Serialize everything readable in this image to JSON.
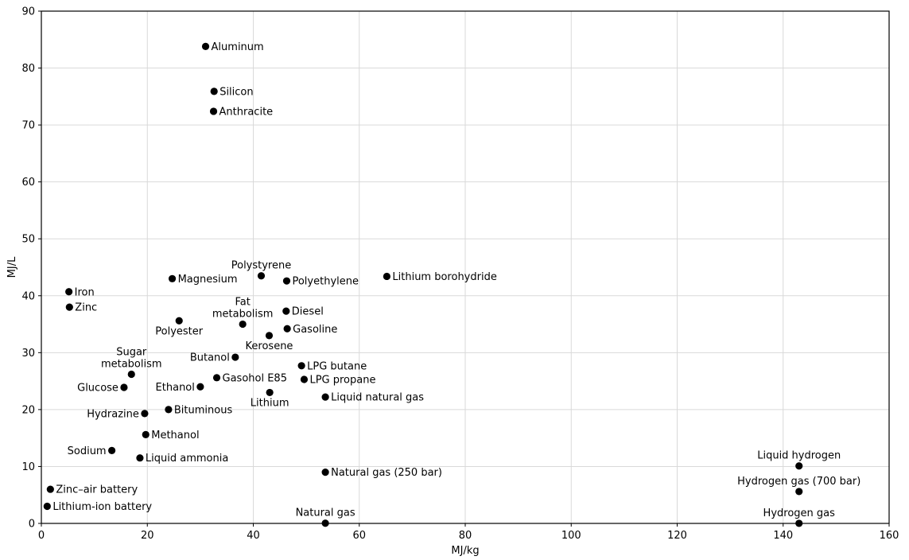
{
  "chart_data": {
    "type": "scatter",
    "xlabel": "MJ/kg",
    "ylabel": "MJ/L",
    "xlim": [
      0,
      160
    ],
    "ylim": [
      0,
      90
    ],
    "x_ticks": [
      0,
      20,
      40,
      60,
      80,
      100,
      120,
      140,
      160
    ],
    "y_ticks": [
      0,
      10,
      20,
      30,
      40,
      50,
      60,
      70,
      80,
      90
    ],
    "grid": true,
    "point_color": "#000000",
    "points": [
      {
        "label": "Aluminum",
        "x": 31.0,
        "y": 83.8,
        "pos": "right"
      },
      {
        "label": "Silicon",
        "x": 32.6,
        "y": 75.9,
        "pos": "right"
      },
      {
        "label": "Anthracite",
        "x": 32.5,
        "y": 72.4,
        "pos": "right"
      },
      {
        "label": "Polystyrene",
        "x": 41.5,
        "y": 43.5,
        "pos": "top"
      },
      {
        "label": "Polyethylene",
        "x": 46.3,
        "y": 42.6,
        "pos": "right"
      },
      {
        "label": "Lithium borohydride",
        "x": 65.2,
        "y": 43.4,
        "pos": "right"
      },
      {
        "label": "Magnesium",
        "x": 24.7,
        "y": 43.0,
        "pos": "right"
      },
      {
        "label": "Iron",
        "x": 5.2,
        "y": 40.7,
        "pos": "right"
      },
      {
        "label": "Zinc",
        "x": 5.3,
        "y": 38.0,
        "pos": "right"
      },
      {
        "label": "Diesel",
        "x": 46.2,
        "y": 37.3,
        "pos": "right"
      },
      {
        "label": "Fat metabolism",
        "x": 38.0,
        "y": 35.0,
        "pos": "top2"
      },
      {
        "label": "Polyester",
        "x": 26.0,
        "y": 35.6,
        "pos": "bottom"
      },
      {
        "label": "Gasoline",
        "x": 46.4,
        "y": 34.2,
        "pos": "right"
      },
      {
        "label": "Kerosene",
        "x": 43.0,
        "y": 33.0,
        "pos": "bottom"
      },
      {
        "label": "Butanol",
        "x": 36.6,
        "y": 29.2,
        "pos": "left"
      },
      {
        "label": "LPG butane",
        "x": 49.1,
        "y": 27.7,
        "pos": "right"
      },
      {
        "label": "Sugar metabolism",
        "x": 17.0,
        "y": 26.2,
        "pos": "top2"
      },
      {
        "label": "Gasohol E85",
        "x": 33.1,
        "y": 25.6,
        "pos": "right"
      },
      {
        "label": "LPG propane",
        "x": 49.6,
        "y": 25.3,
        "pos": "right"
      },
      {
        "label": "Glucose",
        "x": 15.6,
        "y": 23.9,
        "pos": "left"
      },
      {
        "label": "Ethanol",
        "x": 30.0,
        "y": 24.0,
        "pos": "left"
      },
      {
        "label": "Lithium",
        "x": 43.1,
        "y": 23.0,
        "pos": "bottom"
      },
      {
        "label": "Liquid natural gas",
        "x": 53.6,
        "y": 22.2,
        "pos": "right"
      },
      {
        "label": "Bituminous",
        "x": 24.0,
        "y": 20.0,
        "pos": "right"
      },
      {
        "label": "Hydrazine",
        "x": 19.5,
        "y": 19.3,
        "pos": "left"
      },
      {
        "label": "Methanol",
        "x": 19.7,
        "y": 15.6,
        "pos": "right"
      },
      {
        "label": "Sodium",
        "x": 13.3,
        "y": 12.8,
        "pos": "left"
      },
      {
        "label": "Liquid ammonia",
        "x": 18.6,
        "y": 11.5,
        "pos": "right"
      },
      {
        "label": "Natural gas (250 bar)",
        "x": 53.6,
        "y": 9.0,
        "pos": "right"
      },
      {
        "label": "Zinc–air battery",
        "x": 1.7,
        "y": 6.0,
        "pos": "right"
      },
      {
        "label": "Lithium-ion battery",
        "x": 1.1,
        "y": 3.0,
        "pos": "right"
      },
      {
        "label": "Natural gas",
        "x": 53.6,
        "y": 0.036,
        "pos": "top"
      },
      {
        "label": "Liquid hydrogen",
        "x": 143.0,
        "y": 10.1,
        "pos": "top"
      },
      {
        "label": "Hydrogen gas (700 bar)",
        "x": 143.0,
        "y": 5.6,
        "pos": "top"
      },
      {
        "label": "Hydrogen gas",
        "x": 143.0,
        "y": 0.0107,
        "pos": "top"
      }
    ]
  }
}
